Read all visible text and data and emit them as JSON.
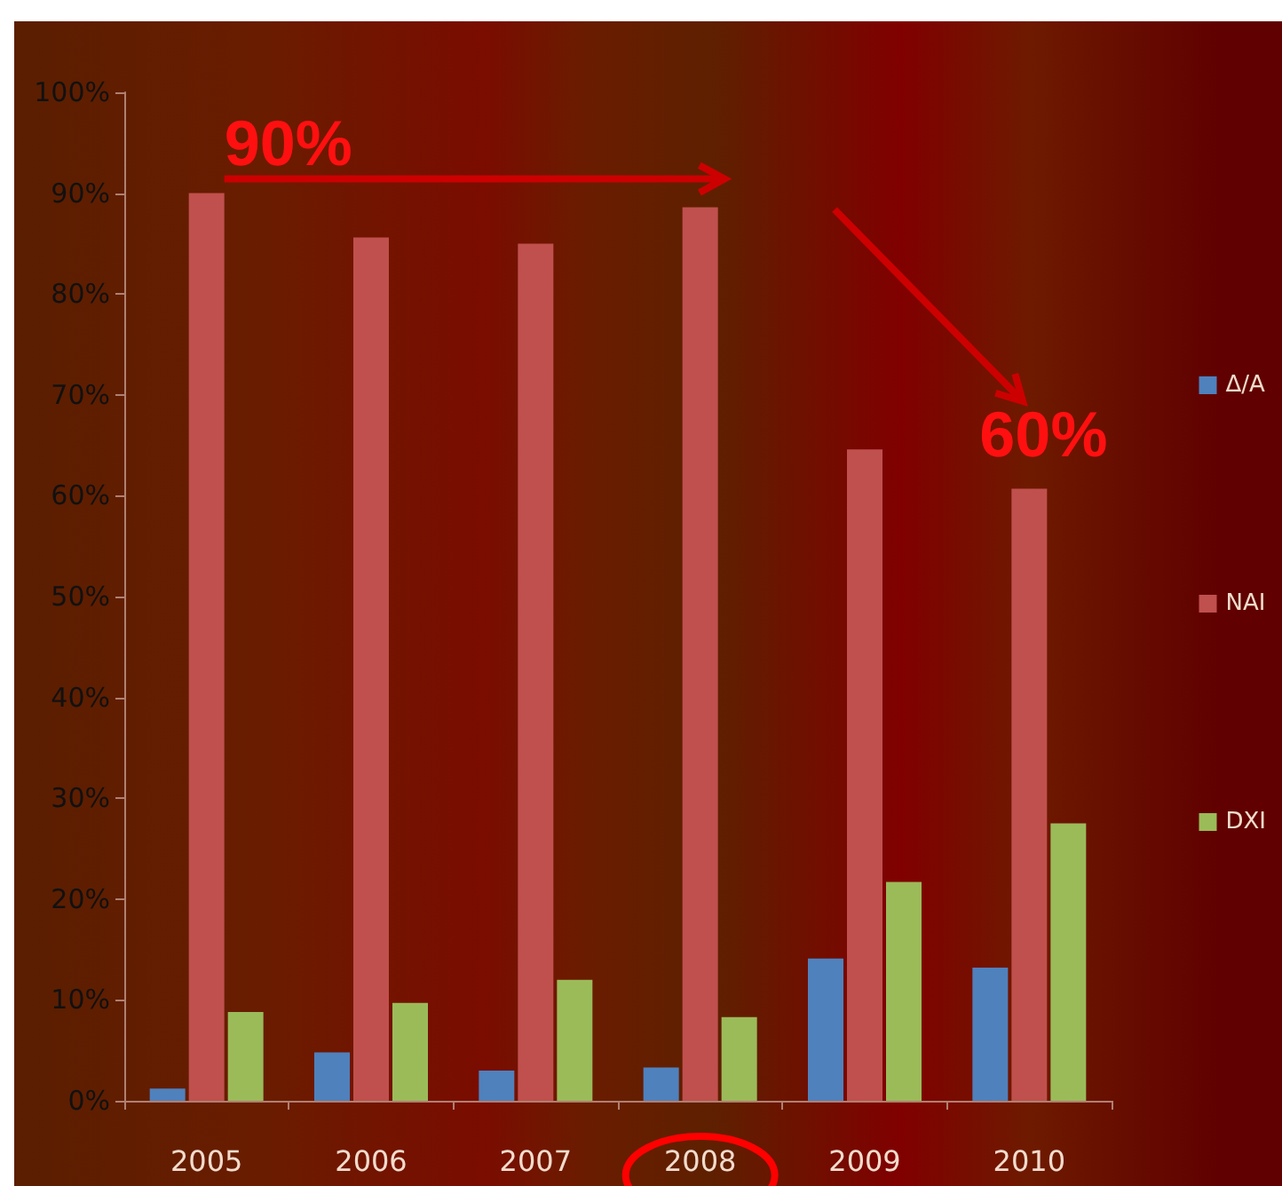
{
  "chart_data": {
    "type": "bar",
    "categories": [
      "2005",
      "2006",
      "2007",
      "2008",
      "2009",
      "2010"
    ],
    "series": [
      {
        "name": "Δ/A",
        "color": "#4f81bd",
        "values": [
          1.2,
          4.8,
          3.0,
          3.3,
          14.1,
          13.2
        ]
      },
      {
        "name": "NAI",
        "color": "#c0504d",
        "values": [
          90,
          85.6,
          85.0,
          88.6,
          64.6,
          60.7
        ]
      },
      {
        "name": "DXI",
        "color": "#9bbb59",
        "values": [
          8.8,
          9.7,
          12.0,
          8.3,
          21.7,
          27.5
        ]
      }
    ],
    "ylim": [
      0,
      100
    ],
    "yticks": [
      {
        "value": 0,
        "label": "0%"
      },
      {
        "value": 10,
        "label": "10%"
      },
      {
        "value": 20,
        "label": "20%"
      },
      {
        "value": 30,
        "label": "30%"
      },
      {
        "value": 40,
        "label": "40%"
      },
      {
        "value": 50,
        "label": "50%"
      },
      {
        "value": 60,
        "label": "60%"
      },
      {
        "value": 70,
        "label": "70%"
      },
      {
        "value": 80,
        "label": "80%"
      },
      {
        "value": 90,
        "label": "90%"
      },
      {
        "value": 100,
        "label": "100%"
      }
    ],
    "annotations": [
      {
        "text": "90%",
        "x": "2005",
        "y": 90
      },
      {
        "text": "60%",
        "x": "2010",
        "y": 60
      }
    ],
    "grid": false,
    "legend": "right"
  }
}
